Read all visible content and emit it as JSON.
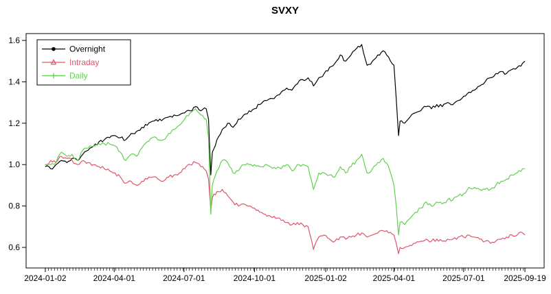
{
  "chart_data": {
    "type": "line",
    "title": "SVXY",
    "xlabel": "",
    "ylabel": "",
    "grid": false,
    "background": "#ffffff",
    "axis_color": "#000000",
    "x_range": [
      "2024-01-02",
      "2025-09-19"
    ],
    "ylim": [
      0.5,
      1.63
    ],
    "y_ticks": [
      0.6,
      0.8,
      1.0,
      1.2,
      1.4,
      1.6
    ],
    "x_ticks": [
      "2024-01-02",
      "2024-04-01",
      "2024-07-01",
      "2024-10-01",
      "2025-01-02",
      "2025-04-01",
      "2025-07-01",
      "2025-09-19"
    ],
    "legend_position": "top-left",
    "dates": [
      "2024-01-02",
      "2024-01-09",
      "2024-01-16",
      "2024-01-23",
      "2024-01-30",
      "2024-02-06",
      "2024-02-13",
      "2024-02-20",
      "2024-02-27",
      "2024-03-05",
      "2024-03-12",
      "2024-03-19",
      "2024-03-26",
      "2024-04-02",
      "2024-04-09",
      "2024-04-16",
      "2024-04-23",
      "2024-04-30",
      "2024-05-07",
      "2024-05-14",
      "2024-05-21",
      "2024-05-28",
      "2024-06-04",
      "2024-06-11",
      "2024-06-18",
      "2024-06-25",
      "2024-07-02",
      "2024-07-09",
      "2024-07-16",
      "2024-07-23",
      "2024-07-30",
      "2024-08-02",
      "2024-08-05",
      "2024-08-07",
      "2024-08-13",
      "2024-08-20",
      "2024-08-27",
      "2024-09-03",
      "2024-09-10",
      "2024-09-17",
      "2024-09-24",
      "2024-10-01",
      "2024-10-08",
      "2024-10-15",
      "2024-10-22",
      "2024-10-29",
      "2024-11-05",
      "2024-11-12",
      "2024-11-19",
      "2024-11-26",
      "2024-12-03",
      "2024-12-10",
      "2024-12-17",
      "2024-12-24",
      "2024-12-31",
      "2025-01-07",
      "2025-01-14",
      "2025-01-21",
      "2025-01-28",
      "2025-02-04",
      "2025-02-11",
      "2025-02-18",
      "2025-02-25",
      "2025-03-04",
      "2025-03-11",
      "2025-03-18",
      "2025-03-25",
      "2025-04-01",
      "2025-04-04",
      "2025-04-07",
      "2025-04-09",
      "2025-04-15",
      "2025-04-22",
      "2025-04-29",
      "2025-05-06",
      "2025-05-13",
      "2025-05-20",
      "2025-05-27",
      "2025-06-03",
      "2025-06-10",
      "2025-06-17",
      "2025-06-24",
      "2025-07-01",
      "2025-07-08",
      "2025-07-15",
      "2025-07-22",
      "2025-07-29",
      "2025-08-05",
      "2025-08-12",
      "2025-08-19",
      "2025-08-26",
      "2025-09-02",
      "2025-09-09",
      "2025-09-16",
      "2025-09-19"
    ],
    "series": [
      {
        "name": "Overnight",
        "color": "#000000",
        "marker": "circle",
        "values": [
          0.99,
          0.98,
          1.0,
          1.02,
          1.01,
          1.03,
          1.02,
          1.05,
          1.07,
          1.09,
          1.11,
          1.12,
          1.13,
          1.14,
          1.13,
          1.12,
          1.15,
          1.16,
          1.18,
          1.19,
          1.21,
          1.21,
          1.22,
          1.23,
          1.24,
          1.24,
          1.25,
          1.26,
          1.28,
          1.26,
          1.27,
          1.22,
          0.95,
          1.06,
          1.12,
          1.17,
          1.2,
          1.18,
          1.22,
          1.24,
          1.26,
          1.27,
          1.29,
          1.31,
          1.32,
          1.33,
          1.35,
          1.37,
          1.36,
          1.39,
          1.41,
          1.42,
          1.38,
          1.42,
          1.44,
          1.47,
          1.49,
          1.53,
          1.5,
          1.53,
          1.56,
          1.58,
          1.48,
          1.5,
          1.53,
          1.55,
          1.52,
          1.48,
          1.32,
          1.14,
          1.21,
          1.2,
          1.23,
          1.25,
          1.26,
          1.28,
          1.27,
          1.29,
          1.28,
          1.3,
          1.29,
          1.31,
          1.33,
          1.35,
          1.36,
          1.38,
          1.4,
          1.42,
          1.44,
          1.45,
          1.44,
          1.46,
          1.47,
          1.49,
          1.5
        ]
      },
      {
        "name": "Intraday",
        "color": "#DF536B",
        "marker": "triangle",
        "values": [
          1.0,
          1.02,
          1.01,
          1.04,
          1.03,
          1.02,
          1.0,
          1.02,
          1.01,
          1.0,
          0.99,
          0.98,
          0.97,
          0.96,
          0.94,
          0.91,
          0.92,
          0.9,
          0.92,
          0.93,
          0.94,
          0.93,
          0.92,
          0.94,
          0.95,
          0.96,
          0.98,
          1.0,
          1.01,
          0.99,
          0.97,
          0.93,
          0.78,
          0.84,
          0.87,
          0.88,
          0.85,
          0.82,
          0.8,
          0.81,
          0.8,
          0.79,
          0.77,
          0.76,
          0.75,
          0.74,
          0.73,
          0.72,
          0.71,
          0.72,
          0.71,
          0.7,
          0.59,
          0.65,
          0.66,
          0.64,
          0.63,
          0.65,
          0.64,
          0.65,
          0.66,
          0.67,
          0.65,
          0.66,
          0.67,
          0.68,
          0.67,
          0.66,
          0.62,
          0.57,
          0.6,
          0.6,
          0.61,
          0.62,
          0.63,
          0.64,
          0.63,
          0.64,
          0.63,
          0.64,
          0.64,
          0.65,
          0.65,
          0.66,
          0.65,
          0.64,
          0.63,
          0.62,
          0.63,
          0.64,
          0.65,
          0.66,
          0.66,
          0.67,
          0.66
        ]
      },
      {
        "name": "Daily",
        "color": "#61D04F",
        "marker": "plus",
        "values": [
          1.0,
          1.0,
          1.01,
          1.06,
          1.04,
          1.05,
          1.02,
          1.07,
          1.08,
          1.09,
          1.1,
          1.1,
          1.1,
          1.09,
          1.06,
          1.02,
          1.05,
          1.04,
          1.08,
          1.11,
          1.13,
          1.12,
          1.12,
          1.15,
          1.17,
          1.19,
          1.22,
          1.25,
          1.27,
          1.24,
          1.22,
          1.13,
          0.76,
          0.9,
          0.97,
          1.02,
          1.01,
          0.96,
          0.97,
          1.0,
          1.0,
          1.0,
          0.99,
          1.0,
          0.99,
          0.98,
          0.98,
          1.0,
          0.97,
          1.0,
          1.0,
          0.99,
          0.88,
          0.96,
          0.96,
          0.95,
          0.94,
          0.99,
          0.96,
          0.99,
          1.02,
          1.05,
          0.96,
          0.98,
          1.01,
          1.03,
          0.99,
          0.9,
          0.8,
          0.66,
          0.72,
          0.71,
          0.74,
          0.77,
          0.79,
          0.82,
          0.8,
          0.82,
          0.81,
          0.83,
          0.83,
          0.85,
          0.86,
          0.89,
          0.89,
          0.88,
          0.88,
          0.88,
          0.9,
          0.92,
          0.93,
          0.95,
          0.96,
          0.98,
          0.98
        ]
      }
    ]
  }
}
